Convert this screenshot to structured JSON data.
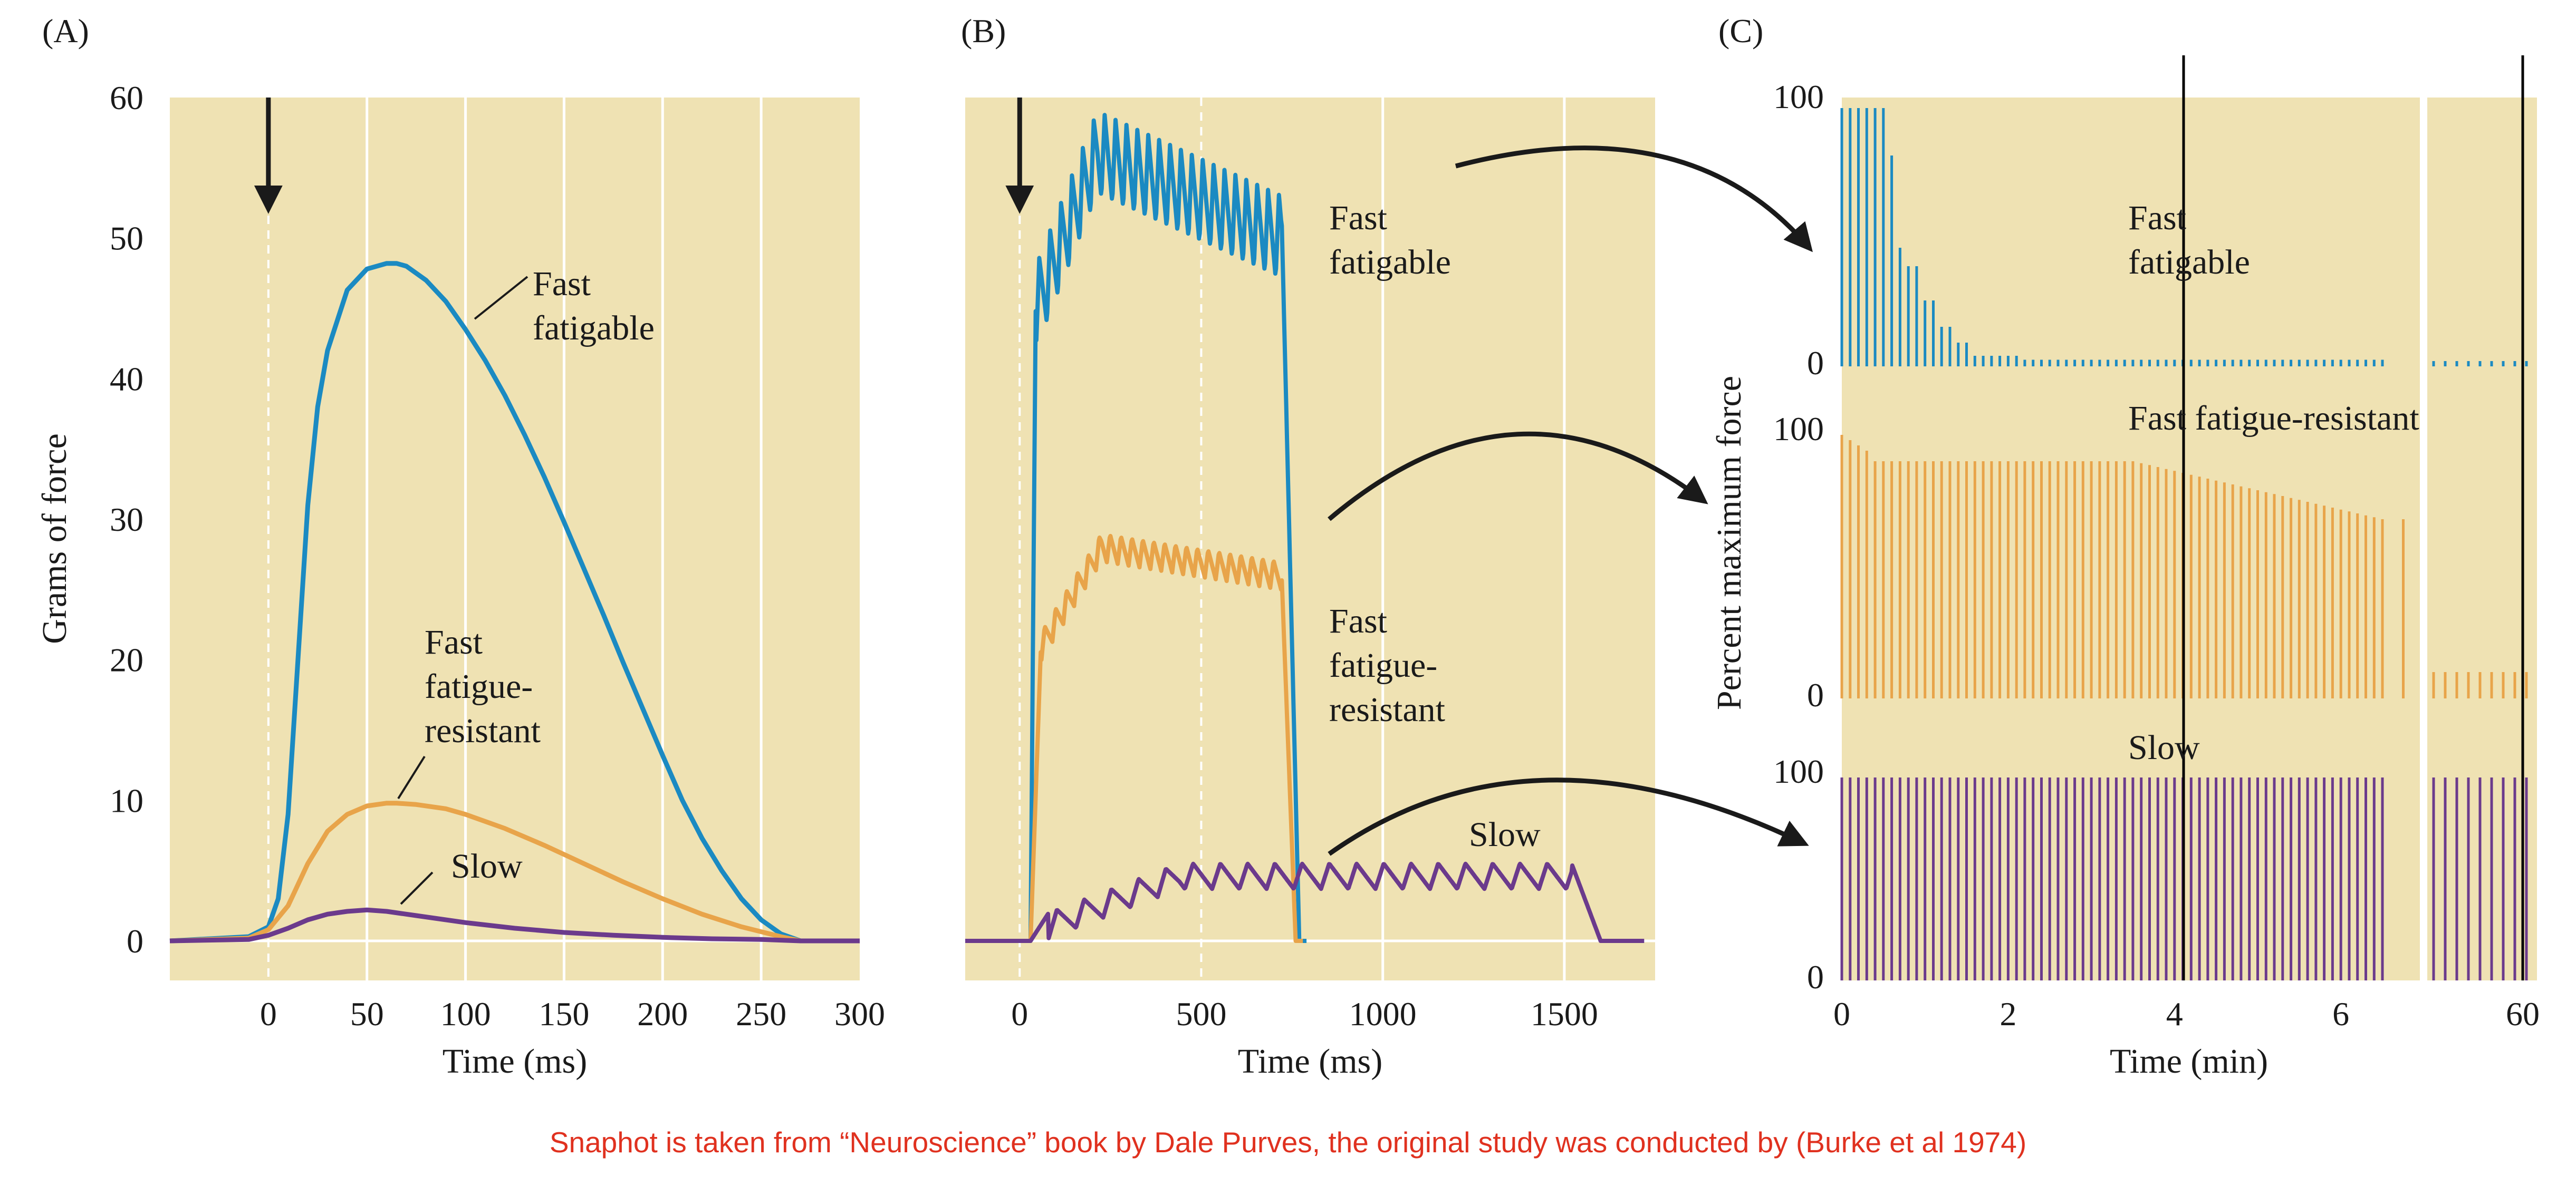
{
  "colors": {
    "panel_bg": "#efe2b3",
    "grid": "#ffffff",
    "fast_fatigable": "#1b8ac2",
    "fast_fatigue_resistant": "#e8a44a",
    "slow": "#6b3a8c",
    "axis_text": "#1a1a1a",
    "caption": "#e0311f"
  },
  "caption": "Snaphot is taken from “Neuroscience” book by Dale Purves, the original study was conducted by (Burke et al 1974)",
  "chart_data": [
    {
      "panel_label": "(A)",
      "type": "line",
      "xlabel": "Time (ms)",
      "ylabel": "Grams of force",
      "xlim": [
        -50,
        300
      ],
      "ylim": [
        0,
        60
      ],
      "xticks": [
        0,
        50,
        100,
        150,
        200,
        250,
        300
      ],
      "yticks": [
        0,
        10,
        20,
        30,
        40,
        50,
        60
      ],
      "grid": true,
      "stimulus_arrow_x": 0,
      "series": [
        {
          "name": "Fast fatigable",
          "label_lines": [
            "Fast",
            "fatigable"
          ],
          "color": "#1b8ac2",
          "x": [
            -50,
            -10,
            0,
            5,
            10,
            15,
            20,
            25,
            30,
            40,
            50,
            60,
            65,
            70,
            80,
            90,
            100,
            110,
            120,
            130,
            140,
            150,
            160,
            170,
            180,
            190,
            200,
            210,
            220,
            230,
            240,
            250,
            260,
            270,
            280,
            300
          ],
          "y": [
            0,
            0.3,
            1,
            3,
            9,
            20,
            31,
            38,
            42,
            46.3,
            47.8,
            48.2,
            48.2,
            48,
            47,
            45.5,
            43.5,
            41.3,
            38.8,
            36,
            33,
            29.8,
            26.5,
            23.2,
            19.8,
            16.5,
            13.2,
            10,
            7.3,
            5,
            3,
            1.5,
            0.5,
            0,
            0,
            0
          ]
        },
        {
          "name": "Fast fatigue-resistant",
          "label_lines": [
            "Fast",
            "fatigue-",
            "resistant"
          ],
          "color": "#e8a44a",
          "x": [
            -50,
            -10,
            0,
            10,
            20,
            30,
            40,
            50,
            60,
            65,
            75,
            90,
            100,
            120,
            140,
            160,
            180,
            200,
            220,
            240,
            260,
            270,
            300
          ],
          "y": [
            0,
            0.2,
            0.8,
            2.5,
            5.5,
            7.8,
            9,
            9.6,
            9.8,
            9.8,
            9.7,
            9.4,
            9,
            8,
            6.8,
            5.5,
            4.2,
            3,
            1.9,
            1,
            0.3,
            0,
            0
          ]
        },
        {
          "name": "Slow",
          "label_lines": [
            "Slow"
          ],
          "color": "#6b3a8c",
          "x": [
            -50,
            -10,
            0,
            10,
            20,
            30,
            40,
            50,
            60,
            75,
            100,
            125,
            150,
            175,
            200,
            225,
            250,
            270,
            300
          ],
          "y": [
            0,
            0.1,
            0.4,
            0.9,
            1.5,
            1.9,
            2.1,
            2.2,
            2.1,
            1.8,
            1.3,
            0.9,
            0.6,
            0.4,
            0.25,
            0.15,
            0.1,
            0,
            0
          ]
        }
      ]
    },
    {
      "panel_label": "(B)",
      "type": "line",
      "xlabel": "Time (ms)",
      "xlim": [
        -150,
        1750
      ],
      "xticks": [
        0,
        500,
        1000,
        1500
      ],
      "grid": true,
      "stimulus_arrow_x": 0,
      "series": [
        {
          "name": "Fast fatigable",
          "label_lines": [
            "Fast",
            "fatigable"
          ],
          "color": "#1b8ac2",
          "start": 30,
          "rise_end": 45,
          "end": 720,
          "fall_end": 770,
          "base_level": 48,
          "peak_level": 59,
          "end_level": 53,
          "ripple_period": 30,
          "ripple_depth": 6
        },
        {
          "name": "Fast fatigue-resistant",
          "label_lines": [
            "Fast",
            "fatigue-",
            "resistant"
          ],
          "color": "#e8a44a",
          "start": 30,
          "rise_end": 60,
          "end": 720,
          "fall_end": 760,
          "base_level": 22,
          "peak_level": 29,
          "end_level": 27,
          "ripple_period": 30,
          "ripple_depth": 2
        },
        {
          "name": "Slow",
          "label_lines": [
            "Slow"
          ],
          "color": "#6b3a8c",
          "start": 30,
          "rise_end": 80,
          "end": 1520,
          "fall_end": 1600,
          "base_level": 2,
          "peak_level": 5.5,
          "end_level": 5.5,
          "ripple_period": 75,
          "ripple_depth": 1.8
        }
      ]
    },
    {
      "panel_label": "(C)",
      "type": "bar",
      "xlabel": "Time (min)",
      "ylabel": "Percent maximum force",
      "xticks": [
        "0",
        "2",
        "4",
        "6",
        "60"
      ],
      "yticks_per_row": [
        "0",
        "100"
      ],
      "grid": true,
      "rows": [
        {
          "name": "Fast fatigable",
          "label_lines": [
            "Fast",
            "fatigable"
          ],
          "color": "#1b8ac2",
          "bar_interval_min": 0.1,
          "values_percent_first_6min": "decays: 98 (0-0.5 min), 80 (0.6), 40 (0.8), 25 (1.0), 15 (1.2), 8 (1.5), 3 (2.0), 2 (>3.0)",
          "value_at_60min": 2
        },
        {
          "name": "Fast fatigue-resistant",
          "label_lines": [
            "Fast fatigue-resistant"
          ],
          "color": "#e8a44a",
          "bar_interval_min": 0.1,
          "values_percent_first_6min": "100 at start, ~90 from 1-3.5 min, declining to ~68 at 6.5 min",
          "value_at_60min": 10
        },
        {
          "name": "Slow",
          "label_lines": [
            "Slow"
          ],
          "color": "#6b3a8c",
          "bar_interval_min": 0.1,
          "values_percent_first_6min": "100 throughout",
          "value_at_60min": 100
        }
      ]
    }
  ]
}
